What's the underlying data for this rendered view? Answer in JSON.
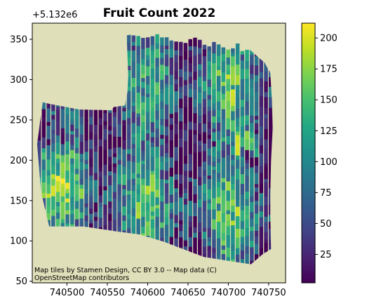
{
  "chart_data": {
    "type": "heatmap",
    "title": "Fruit Count 2022",
    "xlabel": "",
    "ylabel": "",
    "y_offset_label": "+5.132e6",
    "x_ticks": [
      740500,
      740550,
      740600,
      740650,
      740700,
      740750
    ],
    "y_ticks": [
      50,
      100,
      150,
      200,
      250,
      300,
      350
    ],
    "xlim": [
      740457,
      740771
    ],
    "ylim": [
      48,
      370
    ],
    "colorbar": {
      "colormap": "viridis",
      "range": [
        2,
        212
      ],
      "ticks": [
        25,
        50,
        75,
        100,
        125,
        150,
        175,
        200
      ]
    },
    "basemap_color": "#dfdfb9",
    "field_boundary": [
      [
        740470,
        272
      ],
      [
        740478,
        270
      ],
      [
        740515,
        263
      ],
      [
        740555,
        262
      ],
      [
        740558,
        266
      ],
      [
        740572,
        268
      ],
      [
        740575,
        285
      ],
      [
        740576,
        305
      ],
      [
        740574,
        355
      ],
      [
        740590,
        357
      ],
      [
        740650,
        359
      ],
      [
        740700,
        360
      ],
      [
        740716,
        347
      ],
      [
        740730,
        334
      ],
      [
        740745,
        321
      ],
      [
        740752,
        308
      ],
      [
        740754,
        275
      ],
      [
        740755,
        240
      ],
      [
        740753,
        200
      ],
      [
        740752,
        160
      ],
      [
        740752,
        130
      ],
      [
        740753,
        90
      ],
      [
        740742,
        83
      ],
      [
        740728,
        71
      ],
      [
        740670,
        80
      ],
      [
        740620,
        99
      ],
      [
        740590,
        108
      ],
      [
        740560,
        112
      ],
      [
        740520,
        118
      ],
      [
        740478,
        118
      ],
      [
        740468,
        160
      ],
      [
        740463,
        220
      ]
    ],
    "attribution": [
      "Map tiles by Stamen Design, CC BY 3.0 -- Map data (C)",
      "OpenStreetMap contributors"
    ]
  }
}
